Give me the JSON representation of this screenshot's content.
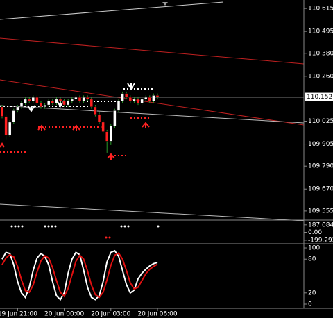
{
  "chart_data": [
    {
      "type": "candlestick",
      "categories": [
        null,
        null,
        null,
        null,
        "19 Jun 21:00",
        null,
        null,
        null,
        null,
        null,
        null,
        null,
        null,
        null,
        null,
        null,
        "20 Jun 00:00",
        null,
        null,
        null,
        null,
        null,
        null,
        null,
        null,
        null,
        null,
        null,
        "20 Jun 03:00",
        null,
        null,
        null,
        null,
        null,
        null,
        null,
        null,
        null,
        null,
        null,
        "20 Jun 06:00"
      ],
      "open": [
        110.1,
        110.05,
        109.95,
        110.02,
        110.08,
        110.1,
        110.12,
        110.14,
        110.13,
        110.15,
        110.12,
        110.1,
        110.11,
        110.13,
        110.12,
        110.14,
        110.13,
        110.11,
        110.13,
        110.14,
        110.15,
        110.13,
        110.15,
        110.14,
        110.1,
        110.06,
        110.02,
        109.97,
        109.92,
        110.0,
        110.08,
        110.13,
        110.17,
        110.15,
        110.13,
        110.14,
        110.12,
        110.14,
        110.15,
        110.13,
        110.16
      ],
      "high": [
        110.11,
        110.06,
        110.03,
        110.09,
        110.11,
        110.13,
        110.15,
        110.15,
        110.16,
        110.16,
        110.13,
        110.12,
        110.14,
        110.14,
        110.15,
        110.15,
        110.14,
        110.14,
        110.15,
        110.16,
        110.16,
        110.16,
        110.16,
        110.15,
        110.11,
        110.07,
        110.03,
        109.98,
        110.01,
        110.09,
        110.14,
        110.18,
        110.18,
        110.16,
        110.15,
        110.15,
        110.15,
        110.16,
        110.16,
        110.17,
        110.17
      ],
      "low": [
        110.04,
        109.93,
        109.94,
        110.01,
        110.07,
        110.09,
        110.11,
        110.12,
        110.12,
        110.11,
        110.09,
        110.09,
        110.1,
        110.11,
        110.11,
        110.12,
        110.1,
        110.1,
        110.12,
        110.13,
        110.12,
        110.12,
        110.13,
        110.09,
        110.05,
        110.01,
        109.96,
        109.86,
        109.9,
        109.99,
        110.07,
        110.12,
        110.14,
        110.12,
        110.12,
        110.11,
        110.11,
        110.13,
        110.12,
        110.12,
        110.14
      ],
      "close": [
        110.05,
        109.95,
        110.02,
        110.08,
        110.1,
        110.12,
        110.14,
        110.13,
        110.15,
        110.12,
        110.1,
        110.11,
        110.13,
        110.12,
        110.14,
        110.13,
        110.11,
        110.13,
        110.14,
        110.15,
        110.13,
        110.15,
        110.14,
        110.1,
        110.06,
        110.02,
        109.97,
        109.92,
        110.0,
        110.08,
        110.13,
        110.17,
        110.15,
        110.13,
        110.14,
        110.12,
        110.14,
        110.15,
        110.13,
        110.16,
        110.152
      ],
      "up_color": "#ffffff",
      "down_color": "#ff2020",
      "last_price": 110.152,
      "ylim": [
        109.511,
        110.659
      ],
      "yticks": [
        110.615,
        110.495,
        {
          "value": 110.38,
          "label": "110.380"
        },
        {
          "value": 110.26,
          "label": "110.260"
        },
        110.025,
        109.905,
        {
          "value": 109.79,
          "label": "109.790"
        },
        {
          "value": 109.67,
          "label": "109.670"
        },
        109.555
      ]
    },
    {
      "type": "indicator",
      "ylim": [
        -271,
        289
      ],
      "yticks": [
        187.0848,
        {
          "value": 0,
          "label": "0.00"
        },
        -199.2927
      ]
    },
    {
      "type": "line",
      "series": [
        {
          "color": "#ffffff",
          "values": [
            80,
            92,
            90,
            70,
            40,
            20,
            12,
            30,
            60,
            82,
            90,
            85,
            70,
            40,
            15,
            8,
            20,
            55,
            80,
            92,
            88,
            60,
            30,
            12,
            8,
            15,
            40,
            75,
            92,
            95,
            85,
            60,
            35,
            20,
            25,
            45,
            55,
            62,
            68,
            72,
            74
          ]
        },
        {
          "color": "#e01010",
          "values": [
            70,
            82,
            88,
            84,
            67,
            43,
            24,
            21,
            34,
            57,
            77,
            86,
            82,
            65,
            42,
            21,
            14,
            28,
            52,
            76,
            87,
            80,
            59,
            34,
            17,
            12,
            21,
            43,
            69,
            87,
            91,
            80,
            60,
            38,
            27,
            30,
            42,
            54,
            62,
            67,
            71
          ]
        }
      ],
      "ylim": [
        -7.4,
        106.2
      ],
      "yticks": [
        100,
        80,
        20,
        0
      ]
    }
  ]
}
